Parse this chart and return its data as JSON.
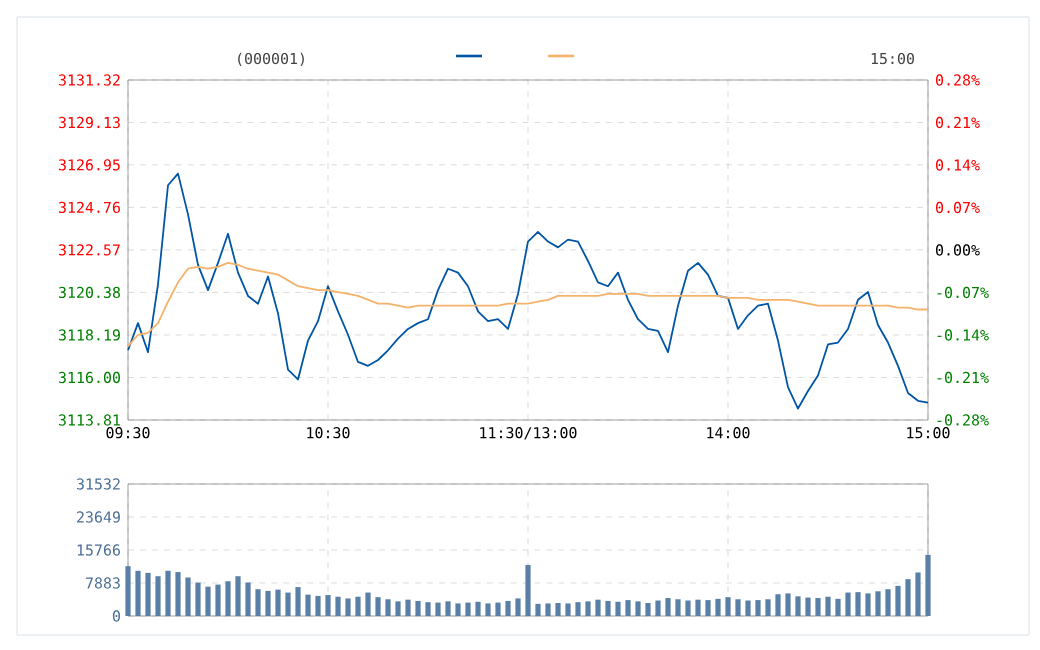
{
  "chart_data": [
    {
      "type": "line",
      "title": "(000001)",
      "annotations": [
        "15:00"
      ],
      "categories": [
        "09:30",
        null,
        null,
        null,
        null,
        null,
        null,
        null,
        null,
        null,
        null,
        null,
        null,
        null,
        null,
        null,
        null,
        null,
        null,
        null,
        "10:30",
        null,
        null,
        null,
        null,
        null,
        null,
        null,
        null,
        null,
        null,
        null,
        null,
        null,
        null,
        null,
        null,
        null,
        null,
        null,
        "11:30/13:00",
        null,
        null,
        null,
        null,
        null,
        null,
        null,
        null,
        null,
        null,
        null,
        null,
        null,
        null,
        null,
        null,
        null,
        null,
        null,
        "14:00",
        null,
        null,
        null,
        null,
        null,
        null,
        null,
        null,
        null,
        null,
        null,
        null,
        null,
        null,
        null,
        null,
        null,
        null,
        null,
        "15:00"
      ],
      "ylim": [
        3113.81,
        3131.32
      ],
      "yticks": [
        3113.81,
        {
          "value": 3116,
          "label": "3116.00"
        },
        3118.19,
        3120.38,
        3122.57,
        3124.76,
        3126.95,
        3129.13,
        3131.32
      ],
      "y2lim": [
        -0.28,
        0.28
      ],
      "y2ticks": [
        {
          "value": -0.28,
          "label": "-0.28%"
        },
        {
          "value": -0.21,
          "label": "-0.21%"
        },
        {
          "value": -0.14,
          "label": "-0.14%"
        },
        {
          "value": -0.07,
          "label": "-0.07%"
        },
        {
          "value": 0,
          "label": "0.00%"
        },
        {
          "value": 0.07,
          "label": "0.07%"
        },
        {
          "value": 0.14,
          "label": "0.14%"
        },
        {
          "value": 0.21,
          "label": "0.21%"
        },
        {
          "value": 0.28,
          "label": "0.28%"
        }
      ],
      "grid": true,
      "line_style": "solid",
      "series": [
        {
          "color": "#0055a5",
          "values": [
            3117.4,
            3118.8,
            3117.3,
            3120.8,
            3125.9,
            3126.5,
            3124.4,
            3121.8,
            3120.5,
            3121.9,
            3123.4,
            3121.4,
            3120.2,
            3119.8,
            3121.2,
            3119.3,
            3116.4,
            3115.9,
            3117.9,
            3118.9,
            3120.7,
            3119.4,
            3118.2,
            3116.8,
            3116.6,
            3116.9,
            3117.4,
            3118.0,
            3118.5,
            3118.8,
            3119.0,
            3120.5,
            3121.6,
            3121.4,
            3120.7,
            3119.4,
            3118.9,
            3119.0,
            3118.5,
            3120.3,
            3123.0,
            3123.5,
            3123.0,
            3122.7,
            3123.1,
            3123.0,
            3122.0,
            3120.9,
            3120.7,
            3121.4,
            3120.0,
            3119.0,
            3118.5,
            3118.4,
            3117.3,
            3119.7,
            3121.5,
            3121.9,
            3121.3,
            3120.2,
            3120.1,
            3118.5,
            3119.2,
            3119.7,
            3119.8,
            3117.9,
            3115.5,
            3114.4,
            3115.3,
            3116.1,
            3117.7,
            3117.8,
            3118.5,
            3120.0,
            3120.4,
            3118.7,
            3117.8,
            3116.6,
            3115.2,
            3114.8,
            3114.7
          ]
        },
        {
          "color": "#f5b26b",
          "values": [
            3117.6,
            3118.2,
            3118.3,
            3118.8,
            3119.9,
            3120.9,
            3121.6,
            3121.7,
            3121.6,
            3121.7,
            3121.9,
            3121.8,
            3121.6,
            3121.5,
            3121.4,
            3121.3,
            3121.0,
            3120.7,
            3120.6,
            3120.5,
            3120.5,
            3120.4,
            3120.3,
            3120.2,
            3120.0,
            3119.8,
            3119.8,
            3119.7,
            3119.6,
            3119.7,
            3119.7,
            3119.7,
            3119.7,
            3119.7,
            3119.7,
            3119.7,
            3119.7,
            3119.7,
            3119.8,
            3119.8,
            3119.8,
            3119.9,
            3120.0,
            3120.2,
            3120.2,
            3120.2,
            3120.2,
            3120.2,
            3120.3,
            3120.3,
            3120.3,
            3120.3,
            3120.2,
            3120.2,
            3120.2,
            3120.2,
            3120.2,
            3120.2,
            3120.2,
            3120.2,
            3120.1,
            3120.1,
            3120.1,
            3120.0,
            3120.0,
            3120.0,
            3120.0,
            3119.9,
            3119.8,
            3119.7,
            3119.7,
            3119.7,
            3119.7,
            3119.7,
            3119.7,
            3119.7,
            3119.7,
            3119.6,
            3119.6,
            3119.5,
            3119.5
          ]
        }
      ]
    },
    {
      "type": "bar",
      "categories": [
        null,
        null,
        null,
        null,
        null,
        null,
        null,
        null,
        null,
        null,
        null,
        null,
        null,
        null,
        null,
        null,
        null,
        null,
        null,
        null,
        null,
        null,
        null,
        null,
        null,
        null,
        null,
        null,
        null,
        null,
        null,
        null,
        null,
        null,
        null,
        null,
        null,
        null,
        null,
        null,
        null,
        null,
        null,
        null,
        null,
        null,
        null,
        null,
        null,
        null,
        null,
        null,
        null,
        null,
        null,
        null,
        null,
        null,
        null,
        null,
        null,
        null,
        null,
        null,
        null,
        null,
        null,
        null,
        null,
        null,
        null,
        null,
        null,
        null,
        null,
        null,
        null,
        null,
        null,
        null,
        null
      ],
      "ylim": [
        0,
        31532
      ],
      "yticks": [
        0,
        7883,
        15766,
        23649,
        31532
      ],
      "grid": true,
      "tick_labels": "y",
      "values": [
        11900,
        10800,
        10300,
        9500,
        10800,
        10500,
        9200,
        8000,
        7000,
        7500,
        8300,
        9500,
        8000,
        6400,
        6000,
        6300,
        5600,
        6900,
        5100,
        4800,
        5000,
        4600,
        4200,
        4600,
        5600,
        4500,
        4000,
        3500,
        3900,
        3600,
        3300,
        3200,
        3500,
        3000,
        3200,
        3400,
        3000,
        3200,
        3600,
        4200,
        12200,
        2900,
        3000,
        3100,
        3000,
        3300,
        3500,
        3900,
        3600,
        3400,
        3800,
        3500,
        3100,
        3700,
        4300,
        4000,
        3700,
        3900,
        3800,
        4100,
        4500,
        4000,
        3700,
        3800,
        4000,
        5200,
        5400,
        4700,
        4400,
        4300,
        4600,
        4100,
        5600,
        5700,
        5400,
        5900,
        6400,
        7200,
        8800,
        10400,
        14600
      ],
      "color": "#5a7fa6"
    }
  ]
}
